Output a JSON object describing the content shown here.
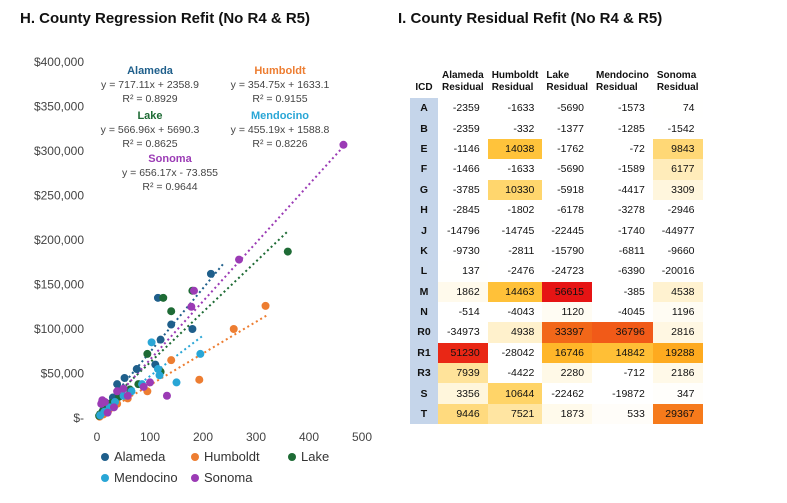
{
  "left_panel": {
    "title": "H. County Regression Refit (No R4 & R5)"
  },
  "right_panel": {
    "title": "I. County Residual Refit (No R4 & R5)"
  },
  "chart_data": {
    "type": "scatter",
    "title": "H. County Regression Refit (No R4 & R5)",
    "xlim": [
      0,
      500
    ],
    "ylim": [
      0,
      400000
    ],
    "x_ticks": [
      "0",
      "100",
      "200",
      "300",
      "400",
      "500"
    ],
    "y_ticks": [
      "$-",
      "$50,000",
      "$100,000",
      "$150,000",
      "$200,000",
      "$250,000",
      "$300,000",
      "$350,000",
      "$400,000"
    ],
    "grid": false,
    "legend_position": "bottom",
    "series": [
      {
        "name": "Alameda",
        "color": "#1f5f8b",
        "slope": 717.11,
        "intercept": 2358.9,
        "trend_x": [
          0,
          240
        ],
        "equation": "y = 717.11x + 2358.9",
        "r2": "R² = 0.8929",
        "points": [
          [
            5,
            3000
          ],
          [
            12,
            9000
          ],
          [
            20,
            16000
          ],
          [
            30,
            23000
          ],
          [
            38,
            38000
          ],
          [
            52,
            45000
          ],
          [
            75,
            55000
          ],
          [
            110,
            60000
          ],
          [
            115,
            135000
          ],
          [
            120,
            88000
          ],
          [
            140,
            105000
          ],
          [
            180,
            100000
          ],
          [
            215,
            162000
          ]
        ]
      },
      {
        "name": "Humboldt",
        "color": "#ed7d31",
        "slope": 354.75,
        "intercept": 1633.1,
        "trend_x": [
          0,
          320
        ],
        "equation": "y = 354.75x + 1633.1",
        "r2": "R² = 0.9155",
        "points": [
          [
            5,
            1500
          ],
          [
            12,
            4000
          ],
          [
            22,
            9000
          ],
          [
            38,
            16000
          ],
          [
            58,
            22000
          ],
          [
            95,
            30000
          ],
          [
            140,
            65000
          ],
          [
            193,
            43000
          ],
          [
            258,
            100000
          ],
          [
            318,
            126000
          ]
        ]
      },
      {
        "name": "Lake",
        "color": "#1e6b35",
        "slope": 566.96,
        "intercept": 5690.3,
        "trend_x": [
          0,
          360
        ],
        "equation": "y = 566.96x + 5690.3",
        "r2": "R² = 0.8625",
        "points": [
          [
            4,
            2500
          ],
          [
            10,
            7000
          ],
          [
            18,
            12000
          ],
          [
            28,
            17000
          ],
          [
            42,
            24000
          ],
          [
            62,
            32000
          ],
          [
            78,
            38000
          ],
          [
            95,
            72000
          ],
          [
            120,
            52000
          ],
          [
            125,
            135000
          ],
          [
            140,
            120000
          ],
          [
            180,
            143000
          ],
          [
            360,
            187000
          ]
        ]
      },
      {
        "name": "Mendocino",
        "color": "#29a6d6",
        "slope": 455.19,
        "intercept": 1588.8,
        "trend_x": [
          0,
          200
        ],
        "equation": "y = 455.19x + 1588.8",
        "r2": "R² = 0.8226",
        "points": [
          [
            6,
            3000
          ],
          [
            14,
            7000
          ],
          [
            24,
            12000
          ],
          [
            34,
            18000
          ],
          [
            50,
            25000
          ],
          [
            65,
            30000
          ],
          [
            85,
            38000
          ],
          [
            103,
            85000
          ],
          [
            115,
            55000
          ],
          [
            118,
            48000
          ],
          [
            150,
            40000
          ],
          [
            195,
            72000
          ]
        ]
      },
      {
        "name": "Sonoma",
        "color": "#9b3bb5",
        "slope": 656.17,
        "intercept": -73.855,
        "trend_x": [
          0,
          465
        ],
        "equation": "y = 656.17x - 73.855",
        "r2": "R² = 0.9644",
        "points": [
          [
            8,
            16000
          ],
          [
            10,
            20000
          ],
          [
            15,
            18000
          ],
          [
            20,
            6000
          ],
          [
            32,
            12000
          ],
          [
            38,
            30000
          ],
          [
            50,
            33000
          ],
          [
            58,
            25000
          ],
          [
            88,
            35000
          ],
          [
            100,
            40000
          ],
          [
            132,
            25000
          ],
          [
            178,
            125000
          ],
          [
            183,
            143000
          ],
          [
            268,
            178000
          ],
          [
            465,
            307000
          ]
        ]
      }
    ]
  },
  "residual_table": {
    "title": "I. County Residual Refit (No R4 & R5)",
    "headers": [
      "ICD",
      "Alameda Residual",
      "Humboldt Residual",
      "Lake Residual",
      "Mendocino Residual",
      "Sonoma Residual"
    ],
    "header_line1": [
      "Alameda",
      "Humboldt",
      "Lake",
      "Mendocino",
      "Sonoma"
    ],
    "header_line2": [
      "Residual",
      "Residual",
      "Residual",
      "Residual",
      "Residual"
    ],
    "icd_header": "ICD",
    "rows": [
      {
        "icd": "A",
        "values": [
          "-2359",
          "-1633",
          "-5690",
          "-1573",
          "74"
        ]
      },
      {
        "icd": "B",
        "values": [
          "-2359",
          "-332",
          "-1377",
          "-1285",
          "-1542"
        ]
      },
      {
        "icd": "E",
        "values": [
          "-1146",
          "14038",
          "-1762",
          "-72",
          "9843"
        ]
      },
      {
        "icd": "F",
        "values": [
          "-1466",
          "-1633",
          "-5690",
          "-1589",
          "6177"
        ]
      },
      {
        "icd": "G",
        "values": [
          "-3785",
          "10330",
          "-5918",
          "-4417",
          "3309"
        ]
      },
      {
        "icd": "H",
        "values": [
          "-2845",
          "-1802",
          "-6178",
          "-3278",
          "-2946"
        ]
      },
      {
        "icd": "J",
        "values": [
          "-14796",
          "-14745",
          "-22445",
          "-1740",
          "-44977"
        ]
      },
      {
        "icd": "K",
        "values": [
          "-9730",
          "-2811",
          "-15790",
          "-6811",
          "-9660"
        ]
      },
      {
        "icd": "L",
        "values": [
          "137",
          "-2476",
          "-24723",
          "-6390",
          "-20016"
        ]
      },
      {
        "icd": "M",
        "values": [
          "1862",
          "14463",
          "56615",
          "-385",
          "4538"
        ]
      },
      {
        "icd": "N",
        "values": [
          "-514",
          "-4043",
          "1120",
          "-4045",
          "1196"
        ]
      },
      {
        "icd": "R0",
        "values": [
          "-34973",
          "4938",
          "33397",
          "36796",
          "2816"
        ]
      },
      {
        "icd": "R1",
        "values": [
          "51230",
          "-28042",
          "16746",
          "14842",
          "19288"
        ]
      },
      {
        "icd": "R3",
        "values": [
          "7939",
          "-4422",
          "2280",
          "-712",
          "2186"
        ]
      },
      {
        "icd": "S",
        "values": [
          "3356",
          "10644",
          "-22462",
          "-19872",
          "347"
        ]
      },
      {
        "icd": "T",
        "values": [
          "9446",
          "7521",
          "1873",
          "533",
          "29367"
        ]
      }
    ]
  }
}
